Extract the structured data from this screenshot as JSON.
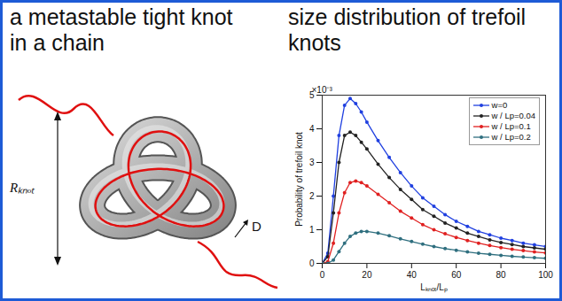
{
  "figure": {
    "title": "a metastable tight knot in a chain",
    "labels": [
      "Rₖₙₒₜ",
      "D"
    ]
  },
  "chart_data": {
    "type": "line",
    "title": "size distribution of trefoil knots",
    "xlabel": "Lₖₙₒₜ/Lₚ",
    "ylabel": "Probability of trefoil knot",
    "annotations": [
      "×10⁻³"
    ],
    "x": [
      0,
      2.5,
      5,
      7.5,
      10,
      12.5,
      15,
      17.5,
      20,
      25,
      30,
      35,
      40,
      45,
      50,
      55,
      60,
      65,
      70,
      75,
      80,
      85,
      90,
      95,
      100
    ],
    "series": [
      {
        "name": "w=0",
        "color": "#2040e0",
        "marker": "circle",
        "values": [
          0,
          0.3,
          2.0,
          3.8,
          4.7,
          4.9,
          4.75,
          4.5,
          4.2,
          3.65,
          3.15,
          2.7,
          2.3,
          1.95,
          1.7,
          1.45,
          1.25,
          1.1,
          0.95,
          0.85,
          0.75,
          0.68,
          0.6,
          0.55,
          0.5
        ]
      },
      {
        "name": "w / Lp=0.04",
        "color": "#222222",
        "marker": "circle",
        "values": [
          0,
          0.2,
          1.5,
          3.0,
          3.8,
          3.9,
          3.8,
          3.6,
          3.4,
          2.95,
          2.55,
          2.2,
          1.9,
          1.6,
          1.4,
          1.2,
          1.05,
          0.9,
          0.8,
          0.7,
          0.62,
          0.56,
          0.5,
          0.46,
          0.42
        ]
      },
      {
        "name": "w / Lp=0.1",
        "color": "#e02020",
        "marker": "circle",
        "values": [
          0,
          0.05,
          0.6,
          1.5,
          2.1,
          2.4,
          2.45,
          2.4,
          2.3,
          2.05,
          1.8,
          1.55,
          1.35,
          1.15,
          1.0,
          0.88,
          0.77,
          0.68,
          0.6,
          0.53,
          0.47,
          0.42,
          0.38,
          0.34,
          0.31
        ]
      },
      {
        "name": "w / Lp=0.2",
        "color": "#2f6f7f",
        "marker": "circle",
        "values": [
          0,
          0,
          0.1,
          0.35,
          0.6,
          0.8,
          0.9,
          0.95,
          0.95,
          0.9,
          0.82,
          0.73,
          0.65,
          0.57,
          0.5,
          0.44,
          0.39,
          0.34,
          0.3,
          0.27,
          0.24,
          0.21,
          0.19,
          0.17,
          0.15
        ]
      }
    ],
    "xlim": [
      0,
      100
    ],
    "xticks": [
      0,
      20,
      40,
      60,
      80,
      100
    ],
    "ylim": [
      0,
      5
    ],
    "yticks": [
      0,
      1,
      2,
      3,
      4,
      5
    ],
    "legend": "top-right"
  }
}
